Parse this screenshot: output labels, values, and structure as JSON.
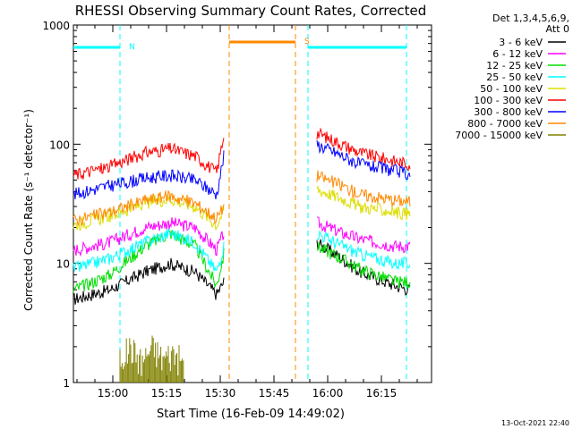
{
  "chart_data": {
    "type": "line",
    "title": "RHESSI Observing Summary Count Rates, Corrected",
    "xlabel": "Start Time (16-Feb-09 14:49:02)",
    "ylabel": "Corrected Count Rate (s⁻¹ detector⁻¹)",
    "x_ticks": [
      "15:00",
      "15:15",
      "15:30",
      "15:45",
      "16:00",
      "16:15"
    ],
    "x_tick_minutes": [
      11,
      26,
      41,
      56,
      71,
      86
    ],
    "xlim_minutes": [
      0,
      100
    ],
    "y_scale": "log",
    "ylim": [
      1,
      1000
    ],
    "y_ticks": [
      1,
      10,
      100,
      1000
    ],
    "y_tick_labels": [
      "1",
      "10",
      "100",
      "1000"
    ],
    "legend_title": [
      "Det 1,3,4,5,6,9,",
      "Att 0"
    ],
    "legend_position": "right",
    "footer_date": "13-Oct-2021 22:40",
    "series": [
      {
        "name": "3 - 6 keV",
        "color": "#000000",
        "x": [
          0,
          10,
          20,
          27,
          34,
          40,
          42,
          63,
          68,
          75,
          80,
          90,
          94
        ],
        "y": [
          5.0,
          6.0,
          8.5,
          10.0,
          8.5,
          5.5,
          7.0,
          null,
          15.0,
          11.0,
          8.5,
          6.5,
          6.0
        ]
      },
      {
        "name": "6 - 12 keV",
        "color": "#ff00ff",
        "x": [
          0,
          10,
          20,
          27,
          34,
          40,
          42,
          63,
          68,
          75,
          80,
          90,
          94
        ],
        "y": [
          13,
          15,
          20,
          22,
          20,
          13,
          18,
          null,
          22,
          18,
          16,
          14,
          14
        ]
      },
      {
        "name": "12 - 25 keV",
        "color": "#00dd00",
        "x": [
          0,
          10,
          20,
          27,
          34,
          40,
          42,
          63,
          68,
          75,
          80,
          90,
          94
        ],
        "y": [
          6.0,
          8.0,
          14.0,
          18.0,
          14.0,
          6.5,
          12.0,
          null,
          14.0,
          11.0,
          9.0,
          7.0,
          7.0
        ]
      },
      {
        "name": "25 - 50 keV",
        "color": "#00ffff",
        "x": [
          0,
          10,
          20,
          27,
          34,
          40,
          42,
          63,
          68,
          75,
          80,
          90,
          94
        ],
        "y": [
          9.0,
          11.0,
          15.0,
          18.0,
          15.0,
          8.5,
          14.0,
          null,
          18.0,
          14.0,
          12.0,
          10.0,
          10.0
        ]
      },
      {
        "name": "50 - 100 keV",
        "color": "#dddd00",
        "x": [
          0,
          10,
          20,
          27,
          34,
          40,
          42,
          63,
          68,
          75,
          80,
          90,
          94
        ],
        "y": [
          21,
          25,
          32,
          35,
          30,
          21,
          28,
          null,
          42,
          35,
          30,
          27,
          26
        ]
      },
      {
        "name": "100 - 300 keV",
        "color": "#ff0000",
        "x": [
          0,
          10,
          20,
          27,
          34,
          40,
          42,
          63,
          68,
          75,
          80,
          90,
          94
        ],
        "y": [
          55,
          65,
          85,
          92,
          80,
          58,
          120,
          null,
          125,
          100,
          85,
          72,
          68
        ]
      },
      {
        "name": "300 - 800 keV",
        "color": "#0000ff",
        "x": [
          0,
          10,
          20,
          27,
          34,
          40,
          42,
          63,
          68,
          75,
          80,
          90,
          94
        ],
        "y": [
          38,
          45,
          52,
          55,
          50,
          38,
          80,
          null,
          100,
          80,
          68,
          60,
          56
        ]
      },
      {
        "name": "800 - 7000 keV",
        "color": "#ff8800",
        "x": [
          0,
          10,
          20,
          27,
          34,
          40,
          42,
          63,
          68,
          75,
          80,
          90,
          94
        ],
        "y": [
          23,
          27,
          34,
          37,
          32,
          24,
          30,
          null,
          55,
          45,
          38,
          34,
          33
        ]
      },
      {
        "name": "7000 - 15000 keV",
        "color": "#808000",
        "x": [
          13,
          16,
          19,
          22,
          25,
          28,
          31
        ],
        "y": [
          1.6,
          2.0,
          1.5,
          2.0,
          1.6,
          1.8,
          1.4
        ]
      }
    ],
    "annotations": [
      {
        "label": "N",
        "color": "#00ffff",
        "x_start": 0,
        "x_end": 13,
        "y": 650
      },
      {
        "label": "",
        "color": "#00ffff",
        "x_start": 65.5,
        "x_end": 93,
        "y": 650
      },
      {
        "label": "S",
        "color": "#ff8800",
        "x_start": 43.5,
        "x_end": 62,
        "y": 720
      }
    ]
  }
}
